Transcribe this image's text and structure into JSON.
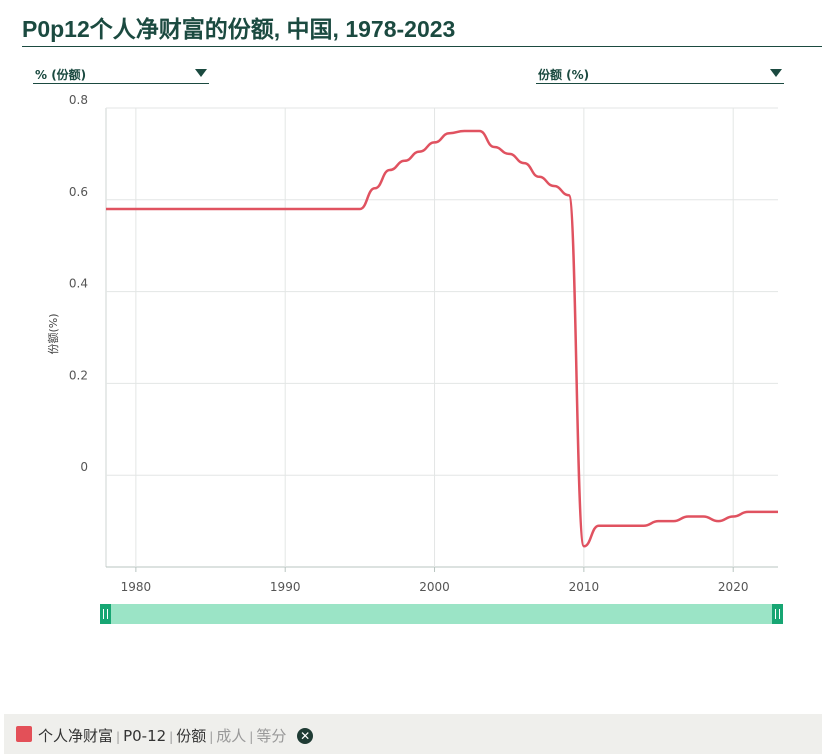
{
  "title": "P0p12个人净财富的份额, 中国, 1978-2023",
  "dropdowns": {
    "left": "% (份额)",
    "right": "份额 (%)"
  },
  "legend": {
    "color": "#e35058",
    "items": [
      "个人净财富",
      "P0-12",
      "份额"
    ],
    "muted_items": [
      "成人",
      "等分"
    ],
    "close_icon": "close-icon"
  },
  "chart_data": {
    "type": "line",
    "ylabel": "份额(%)",
    "xlabel": "",
    "xlim": [
      1978,
      2023
    ],
    "ylim": [
      -0.2,
      0.8
    ],
    "xticks": [
      1980,
      1990,
      2000,
      2010,
      2020
    ],
    "yticks": [
      0,
      0.2,
      0.4,
      0.6,
      0.8
    ],
    "ytick_labels": [
      "0",
      "0.2",
      "0.4",
      "0.6",
      "0.8"
    ],
    "grid": true,
    "series": [
      {
        "color": "#e05260",
        "x": [
          1978,
          1979,
          1980,
          1981,
          1982,
          1983,
          1984,
          1985,
          1986,
          1987,
          1988,
          1989,
          1990,
          1991,
          1992,
          1993,
          1994,
          1995,
          1996,
          1997,
          1998,
          1999,
          2000,
          2001,
          2002,
          2003,
          2004,
          2005,
          2006,
          2007,
          2008,
          2009,
          2010,
          2011,
          2012,
          2013,
          2014,
          2015,
          2016,
          2017,
          2018,
          2019,
          2020,
          2021,
          2022,
          2023
        ],
        "values": [
          0.58,
          0.58,
          0.58,
          0.58,
          0.58,
          0.58,
          0.58,
          0.58,
          0.58,
          0.58,
          0.58,
          0.58,
          0.58,
          0.58,
          0.58,
          0.58,
          0.58,
          0.58,
          0.625,
          0.665,
          0.685,
          0.705,
          0.725,
          0.745,
          0.75,
          0.75,
          0.715,
          0.7,
          0.68,
          0.65,
          0.63,
          0.61,
          -0.155,
          -0.11,
          -0.11,
          -0.11,
          -0.11,
          -0.1,
          -0.1,
          -0.09,
          -0.09,
          -0.1,
          -0.09,
          -0.08,
          -0.08,
          -0.08
        ]
      }
    ]
  }
}
